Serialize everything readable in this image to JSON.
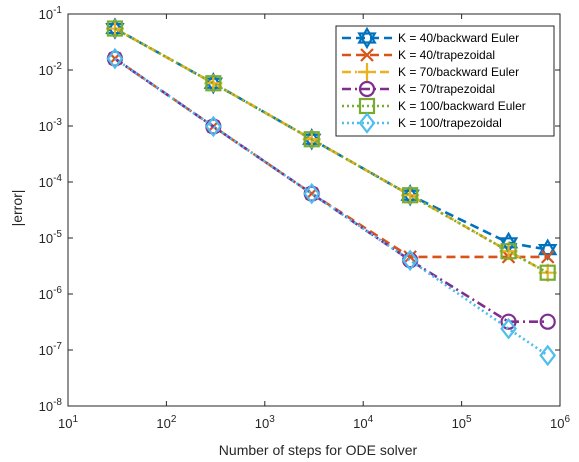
{
  "chart_data": {
    "type": "line",
    "xscale": "log",
    "yscale": "log",
    "xlabel": "Number of steps for ODE solver",
    "ylabel": "|error|",
    "xlim": [
      10,
      1000000
    ],
    "ylim": [
      1e-08,
      0.1
    ],
    "grid": false,
    "legend_position": "top-right",
    "x_ticks": [
      {
        "value": 10,
        "base": "10",
        "exp": "1"
      },
      {
        "value": 100,
        "base": "10",
        "exp": "2"
      },
      {
        "value": 1000,
        "base": "10",
        "exp": "3"
      },
      {
        "value": 10000,
        "base": "10",
        "exp": "4"
      },
      {
        "value": 100000,
        "base": "10",
        "exp": "5"
      },
      {
        "value": 1000000,
        "base": "10",
        "exp": "6"
      }
    ],
    "y_ticks": [
      {
        "value": 1e-08,
        "base": "10",
        "exp": "-8"
      },
      {
        "value": 1e-07,
        "base": "10",
        "exp": "-7"
      },
      {
        "value": 1e-06,
        "base": "10",
        "exp": "-6"
      },
      {
        "value": 1e-05,
        "base": "10",
        "exp": "-5"
      },
      {
        "value": 0.0001,
        "base": "10",
        "exp": "-4"
      },
      {
        "value": 0.001,
        "base": "10",
        "exp": "-3"
      },
      {
        "value": 0.01,
        "base": "10",
        "exp": "-2"
      },
      {
        "value": 0.1,
        "base": "10",
        "exp": "-1"
      }
    ],
    "x": [
      30,
      300,
      3000,
      30000,
      300000,
      750000
    ],
    "series": [
      {
        "name": "K = 40/backward Euler",
        "color": "#0072BD",
        "dash": "dashed",
        "marker": "hexagram",
        "values": [
          0.055,
          0.0058,
          0.00058,
          5.8e-05,
          8.2e-06,
          6.2e-06
        ]
      },
      {
        "name": "K = 40/trapezoidal",
        "color": "#D95319",
        "dash": "dashed",
        "marker": "x",
        "values": [
          0.016,
          0.00098,
          6.2e-05,
          4.6e-06,
          4.6e-06,
          4.6e-06
        ]
      },
      {
        "name": "K = 70/backward Euler",
        "color": "#EDB120",
        "dash": "dashdot",
        "marker": "plus",
        "values": [
          0.055,
          0.0058,
          0.00058,
          5.8e-05,
          5.8e-06,
          2.4e-06
        ]
      },
      {
        "name": "K = 70/trapezoidal",
        "color": "#7E2F8E",
        "dash": "dashdot",
        "marker": "circle",
        "values": [
          0.016,
          0.00098,
          6.2e-05,
          4e-06,
          3.2e-07,
          3.2e-07
        ]
      },
      {
        "name": "K = 100/backward Euler",
        "color": "#77AC30",
        "dash": "dotted",
        "marker": "square",
        "values": [
          0.055,
          0.0058,
          0.00058,
          5.8e-05,
          5.8e-06,
          2.4e-06
        ]
      },
      {
        "name": "K = 100/trapezoidal",
        "color": "#4DBEEE",
        "dash": "dotted",
        "marker": "diamond",
        "values": [
          0.016,
          0.00098,
          6.2e-05,
          4e-06,
          2.4e-07,
          8e-08
        ]
      }
    ]
  }
}
